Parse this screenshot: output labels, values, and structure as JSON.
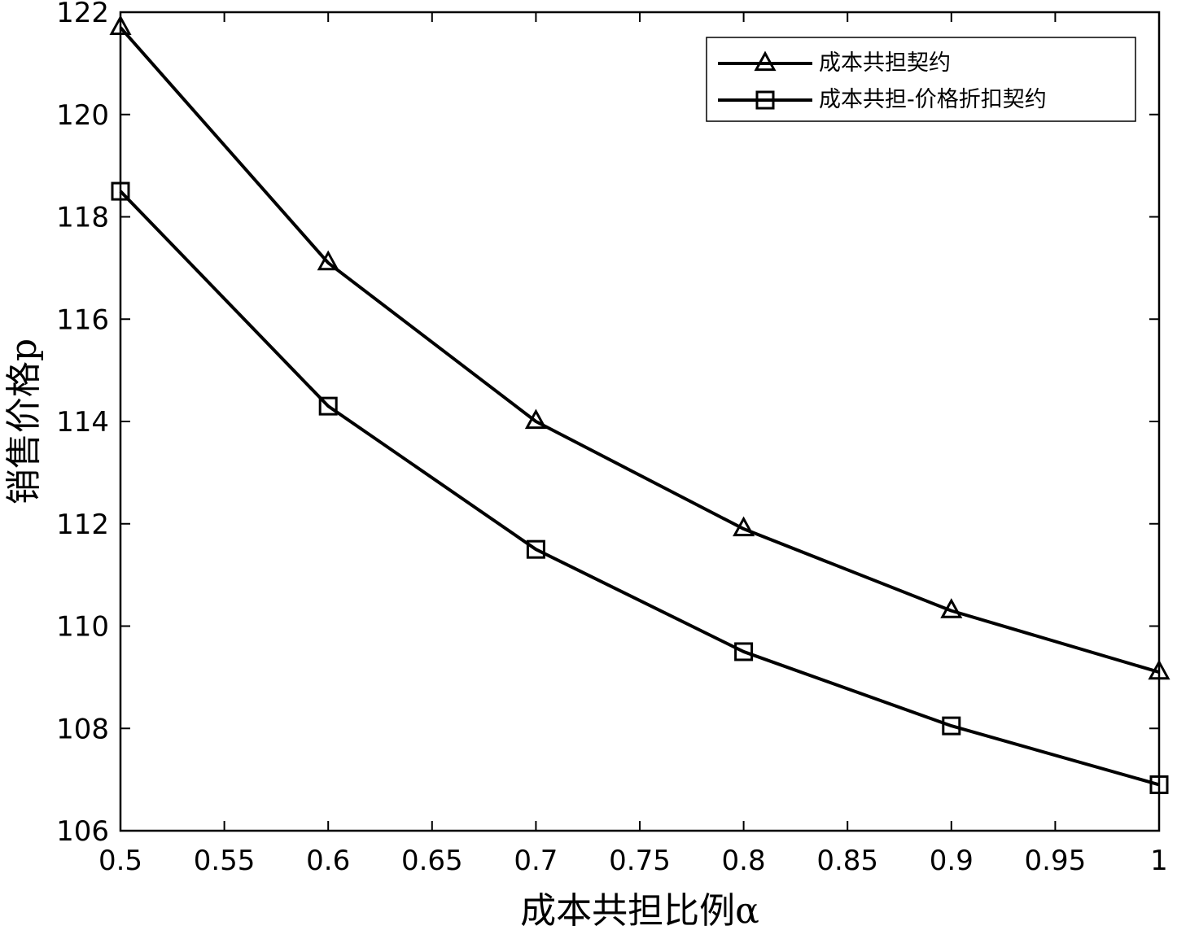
{
  "chart_data": {
    "type": "line",
    "xlabel": "成本共担比例α",
    "ylabel": "销售价格p",
    "xlim": [
      0.5,
      1.0
    ],
    "ylim": [
      106,
      122
    ],
    "xticks": [
      "0.5",
      "0.55",
      "0.6",
      "0.65",
      "0.7",
      "0.75",
      "0.8",
      "0.85",
      "0.9",
      "0.95",
      "1"
    ],
    "yticks": [
      "106",
      "108",
      "110",
      "112",
      "114",
      "116",
      "118",
      "120",
      "122"
    ],
    "x": [
      0.5,
      0.6,
      0.7,
      0.8,
      0.9,
      1.0
    ],
    "series": [
      {
        "name": "成本共担契约",
        "marker": "triangle",
        "values": [
          121.7,
          117.1,
          114.0,
          111.9,
          110.3,
          109.1
        ]
      },
      {
        "name": "成本共担-价格折扣契约",
        "marker": "square",
        "values": [
          118.5,
          114.3,
          111.5,
          109.5,
          108.05,
          106.9
        ]
      }
    ],
    "legend_position": "top-right",
    "grid": false,
    "line_color": "#000000"
  }
}
